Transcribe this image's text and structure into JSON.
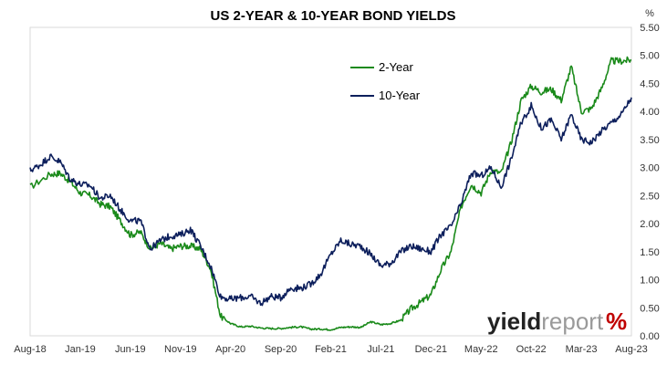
{
  "chart_data": {
    "type": "line",
    "title": "US 2-YEAR & 10-YEAR BOND YIELDS",
    "y_unit": "%",
    "y_axis_side": "right",
    "ylim": [
      0,
      5.5
    ],
    "y_ticks": [
      "0.00",
      "0.50",
      "1.00",
      "1.50",
      "2.00",
      "2.50",
      "3.00",
      "3.50",
      "4.00",
      "4.50",
      "5.00",
      "5.50"
    ],
    "x_ticks": [
      "Aug-18",
      "Jan-19",
      "Jun-19",
      "Nov-19",
      "Apr-20",
      "Sep-20",
      "Feb-21",
      "Jul-21",
      "Dec-21",
      "May-22",
      "Oct-22",
      "Mar-23",
      "Aug-23"
    ],
    "grid": false,
    "legend_placement": "top-center",
    "series": [
      {
        "name": "2-Year",
        "color": "#1a8a1a",
        "points": [
          [
            "Aug-18",
            2.65
          ],
          [
            "Oct-18",
            2.88
          ],
          [
            "Nov-18",
            2.9
          ],
          [
            "Dec-18",
            2.75
          ],
          [
            "Jan-19",
            2.55
          ],
          [
            "Feb-19",
            2.5
          ],
          [
            "Mar-19",
            2.35
          ],
          [
            "Apr-19",
            2.3
          ],
          [
            "May-19",
            2.05
          ],
          [
            "Jun-19",
            1.8
          ],
          [
            "Jul-19",
            1.85
          ],
          [
            "Aug-19",
            1.55
          ],
          [
            "Sep-19",
            1.65
          ],
          [
            "Oct-19",
            1.55
          ],
          [
            "Nov-19",
            1.6
          ],
          [
            "Dec-19",
            1.6
          ],
          [
            "Jan-20",
            1.55
          ],
          [
            "Feb-20",
            1.2
          ],
          [
            "Mar-20",
            0.35
          ],
          [
            "Apr-20",
            0.22
          ],
          [
            "May-20",
            0.16
          ],
          [
            "Jun-20",
            0.17
          ],
          [
            "Jul-20",
            0.14
          ],
          [
            "Aug-20",
            0.13
          ],
          [
            "Sep-20",
            0.13
          ],
          [
            "Oct-20",
            0.15
          ],
          [
            "Nov-20",
            0.16
          ],
          [
            "Dec-20",
            0.12
          ],
          [
            "Jan-21",
            0.12
          ],
          [
            "Feb-21",
            0.11
          ],
          [
            "Mar-21",
            0.15
          ],
          [
            "Apr-21",
            0.16
          ],
          [
            "May-21",
            0.15
          ],
          [
            "Jun-21",
            0.25
          ],
          [
            "Jul-21",
            0.2
          ],
          [
            "Aug-21",
            0.22
          ],
          [
            "Sep-21",
            0.28
          ],
          [
            "Oct-21",
            0.48
          ],
          [
            "Nov-21",
            0.6
          ],
          [
            "Dec-21",
            0.73
          ],
          [
            "Jan-22",
            1.18
          ],
          [
            "Feb-22",
            1.5
          ],
          [
            "Mar-22",
            2.3
          ],
          [
            "Apr-22",
            2.7
          ],
          [
            "May-22",
            2.55
          ],
          [
            "Jun-22",
            2.95
          ],
          [
            "Jul-22",
            2.9
          ],
          [
            "Aug-22",
            3.45
          ],
          [
            "Sep-22",
            4.2
          ],
          [
            "Oct-22",
            4.45
          ],
          [
            "Nov-22",
            4.35
          ],
          [
            "Dec-22",
            4.4
          ],
          [
            "Jan-23",
            4.2
          ],
          [
            "Feb-23",
            4.8
          ],
          [
            "Mar-23",
            4.0
          ],
          [
            "Apr-23",
            4.05
          ],
          [
            "May-23",
            4.4
          ],
          [
            "Jun-23",
            4.9
          ],
          [
            "Jul-23",
            4.9
          ],
          [
            "Aug-23",
            4.92
          ]
        ]
      },
      {
        "name": "10-Year",
        "color": "#0d1f5c",
        "points": [
          [
            "Aug-18",
            2.95
          ],
          [
            "Sep-18",
            3.05
          ],
          [
            "Oct-18",
            3.2
          ],
          [
            "Nov-18",
            3.1
          ],
          [
            "Dec-18",
            2.8
          ],
          [
            "Jan-19",
            2.7
          ],
          [
            "Feb-19",
            2.68
          ],
          [
            "Mar-19",
            2.45
          ],
          [
            "Apr-19",
            2.5
          ],
          [
            "May-19",
            2.25
          ],
          [
            "Jun-19",
            2.05
          ],
          [
            "Jul-19",
            2.05
          ],
          [
            "Aug-19",
            1.55
          ],
          [
            "Sep-19",
            1.7
          ],
          [
            "Oct-19",
            1.78
          ],
          [
            "Nov-19",
            1.8
          ],
          [
            "Dec-19",
            1.9
          ],
          [
            "Jan-20",
            1.6
          ],
          [
            "Feb-20",
            1.25
          ],
          [
            "Mar-20",
            0.7
          ],
          [
            "Apr-20",
            0.65
          ],
          [
            "May-20",
            0.68
          ],
          [
            "Jun-20",
            0.7
          ],
          [
            "Jul-20",
            0.58
          ],
          [
            "Aug-20",
            0.7
          ],
          [
            "Sep-20",
            0.68
          ],
          [
            "Oct-20",
            0.85
          ],
          [
            "Nov-20",
            0.85
          ],
          [
            "Dec-20",
            0.92
          ],
          [
            "Jan-21",
            1.1
          ],
          [
            "Feb-21",
            1.45
          ],
          [
            "Mar-21",
            1.7
          ],
          [
            "Apr-21",
            1.63
          ],
          [
            "May-21",
            1.6
          ],
          [
            "Jun-21",
            1.45
          ],
          [
            "Jul-21",
            1.25
          ],
          [
            "Aug-21",
            1.3
          ],
          [
            "Sep-21",
            1.5
          ],
          [
            "Oct-21",
            1.6
          ],
          [
            "Nov-21",
            1.55
          ],
          [
            "Dec-21",
            1.5
          ],
          [
            "Jan-22",
            1.8
          ],
          [
            "Feb-22",
            1.95
          ],
          [
            "Mar-22",
            2.35
          ],
          [
            "Apr-22",
            2.9
          ],
          [
            "May-22",
            2.85
          ],
          [
            "Jun-22",
            3.0
          ],
          [
            "Jul-22",
            2.65
          ],
          [
            "Aug-22",
            3.15
          ],
          [
            "Sep-22",
            3.8
          ],
          [
            "Oct-22",
            4.1
          ],
          [
            "Nov-22",
            3.7
          ],
          [
            "Dec-22",
            3.85
          ],
          [
            "Jan-23",
            3.5
          ],
          [
            "Feb-23",
            3.95
          ],
          [
            "Mar-23",
            3.5
          ],
          [
            "Apr-23",
            3.45
          ],
          [
            "May-23",
            3.65
          ],
          [
            "Jun-23",
            3.8
          ],
          [
            "Jul-23",
            3.95
          ],
          [
            "Aug-23",
            4.25
          ]
        ]
      }
    ]
  },
  "brand": {
    "part1": "yield",
    "part2": "report",
    "symbol": "%",
    "color_dark": "#222222",
    "color_grey": "#9a9a9a",
    "color_accent": "#c00000"
  }
}
